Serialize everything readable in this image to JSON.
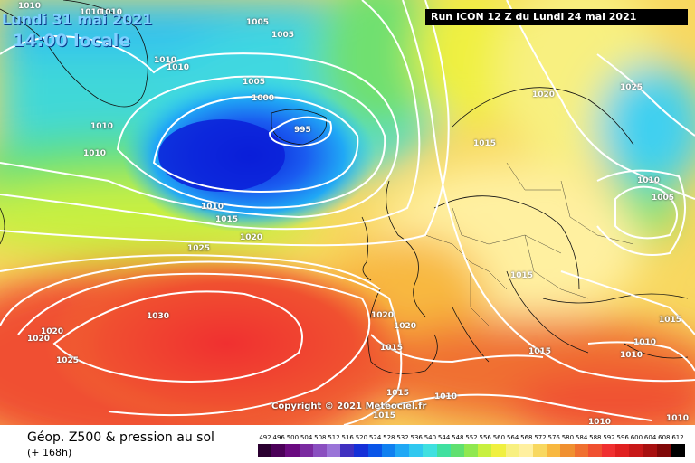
{
  "header": {
    "date_line": "Lundi 31 mai 2021",
    "time_line": "14:00 locale",
    "run_info": "Run ICON 12 Z du Lundi 24 mai 2021"
  },
  "copyright": "Copyright © 2021 Meteociel.fr",
  "footer": {
    "field_label": "Géop. Z500 & pression au sol",
    "forecast_hour": "(+ 168h)"
  },
  "legend": {
    "values": [
      "492",
      "496",
      "500",
      "504",
      "508",
      "512",
      "516",
      "520",
      "524",
      "528",
      "532",
      "536",
      "540",
      "544",
      "548",
      "552",
      "556",
      "560",
      "564",
      "568",
      "572",
      "576",
      "580",
      "584",
      "588",
      "592",
      "596",
      "600",
      "604",
      "608",
      "612"
    ],
    "colors": [
      "#2a0030",
      "#4b0058",
      "#6a0a80",
      "#7a2aa0",
      "#8a4fc0",
      "#9a74d8",
      "#4030c0",
      "#1530d8",
      "#0a55e8",
      "#1080f0",
      "#20a8f5",
      "#30c8f0",
      "#40e0e0",
      "#40e0a0",
      "#60e070",
      "#90e850",
      "#c8f040",
      "#f0f040",
      "#f8f080",
      "#fff0a0",
      "#f8d860",
      "#f8b840",
      "#f09030",
      "#f07030",
      "#f05030",
      "#f03030",
      "#e02020",
      "#c81818",
      "#a81010",
      "#800808",
      "#000000"
    ]
  },
  "isobars": [
    {
      "id": "l1010a",
      "text": "1010"
    },
    {
      "id": "l1010b",
      "text": "1010"
    },
    {
      "id": "l1010c",
      "text": "1010"
    },
    {
      "id": "l1005a",
      "text": "1005"
    },
    {
      "id": "l1005b",
      "text": "1005"
    },
    {
      "id": "l1010d",
      "text": "1010"
    },
    {
      "id": "l1010e",
      "text": "1010"
    },
    {
      "id": "l1005c",
      "text": "1005"
    },
    {
      "id": "l1000",
      "text": "1000"
    },
    {
      "id": "l995",
      "text": "995"
    },
    {
      "id": "l1010f",
      "text": "1010"
    },
    {
      "id": "l1010g",
      "text": "1010"
    },
    {
      "id": "l1010h",
      "text": "1010"
    },
    {
      "id": "l1015a",
      "text": "1015"
    },
    {
      "id": "l1020a",
      "text": "1020"
    },
    {
      "id": "l1025a",
      "text": "1025"
    },
    {
      "id": "l1030",
      "text": "1030"
    },
    {
      "id": "l1020b",
      "text": "1020"
    },
    {
      "id": "l1020c",
      "text": "1020"
    },
    {
      "id": "l1025b",
      "text": "1025"
    },
    {
      "id": "l1020d",
      "text": "1020"
    },
    {
      "id": "l1020e",
      "text": "1020"
    },
    {
      "id": "l1015b",
      "text": "1015"
    },
    {
      "id": "l1015c",
      "text": "1015"
    },
    {
      "id": "l1015d",
      "text": "1015"
    },
    {
      "id": "l1010i",
      "text": "1010"
    },
    {
      "id": "l1015e",
      "text": "1015"
    },
    {
      "id": "l1015f",
      "text": "1015"
    },
    {
      "id": "l1020f",
      "text": "1020"
    },
    {
      "id": "l1025c",
      "text": "1025"
    },
    {
      "id": "l1015g",
      "text": "1015"
    },
    {
      "id": "l1010j",
      "text": "1010"
    },
    {
      "id": "l1005d",
      "text": "1005"
    },
    {
      "id": "l1015h",
      "text": "1015"
    },
    {
      "id": "l1010k",
      "text": "1010"
    },
    {
      "id": "l1010l",
      "text": "1010"
    },
    {
      "id": "l1010m",
      "text": "1010"
    },
    {
      "id": "l1010n",
      "text": "1010"
    }
  ]
}
